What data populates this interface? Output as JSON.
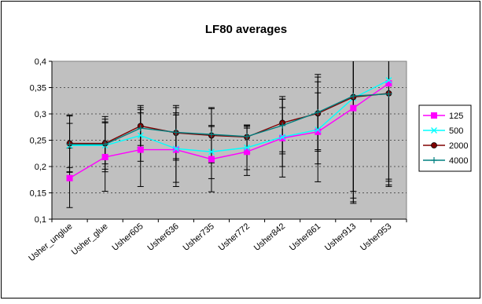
{
  "chart_data": {
    "type": "line",
    "title": "LF80 averages",
    "xlabel": "",
    "ylabel": "",
    "categories": [
      "Usher_unglue",
      "Usher_glue",
      "Usher605",
      "Usher636",
      "Usher735",
      "Usher772",
      "Usher842",
      "Usher861",
      "Usher913",
      "Usher953"
    ],
    "ylim": [
      0.1,
      0.4
    ],
    "yticks": [
      0.1,
      0.15,
      0.2,
      0.25,
      0.3,
      0.35,
      0.4
    ],
    "ytick_labels": [
      "0,1",
      "0,15",
      "0,2",
      "0,25",
      "0,3",
      "0,35",
      "0,4"
    ],
    "grid": true,
    "legend_position": "right",
    "plot_background": "#c0c0c0",
    "series": [
      {
        "name": "125",
        "color": "#ff00ff",
        "marker": "square",
        "values": [
          0.178,
          0.218,
          0.232,
          0.232,
          0.214,
          0.228,
          0.254,
          0.266,
          0.311,
          0.358
        ],
        "err_low": [
          0.122,
          0.153,
          0.162,
          0.162,
          0.152,
          0.183,
          0.18,
          0.171,
          0.13,
          0.162
        ],
        "err_high": [
          0.235,
          0.283,
          0.302,
          0.302,
          0.276,
          0.273,
          0.328,
          0.361,
          0.4,
          0.4
        ]
      },
      {
        "name": "500",
        "color": "#00ffff",
        "marker": "x",
        "values": [
          0.24,
          0.24,
          0.259,
          0.234,
          0.228,
          0.236,
          0.256,
          0.27,
          0.33,
          0.364
        ],
        "err_low": [
          0.198,
          0.205,
          0.21,
          0.17,
          0.177,
          0.194,
          0.2,
          0.205,
          0.14,
          0.165
        ],
        "err_high": [
          0.282,
          0.285,
          0.308,
          0.298,
          0.278,
          0.278,
          0.312,
          0.34,
          0.4,
          0.4
        ]
      },
      {
        "name": "2000",
        "color": "#800000",
        "marker": "circle",
        "values": [
          0.244,
          0.244,
          0.277,
          0.264,
          0.259,
          0.256,
          0.283,
          0.301,
          0.332,
          0.339
        ],
        "err_low": [
          0.19,
          0.195,
          0.24,
          0.212,
          0.207,
          0.225,
          0.228,
          0.232,
          0.133,
          0.176
        ],
        "err_high": [
          0.298,
          0.295,
          0.316,
          0.316,
          0.312,
          0.279,
          0.333,
          0.375,
          0.4,
          0.4
        ]
      },
      {
        "name": "4000",
        "color": "#008080",
        "marker": "plus",
        "values": [
          0.242,
          0.242,
          0.273,
          0.265,
          0.261,
          0.257,
          0.278,
          0.303,
          0.334,
          0.338
        ],
        "err_low": [
          0.189,
          0.19,
          0.236,
          0.215,
          0.21,
          0.226,
          0.224,
          0.229,
          0.153,
          0.172
        ],
        "err_high": [
          0.296,
          0.29,
          0.312,
          0.312,
          0.31,
          0.276,
          0.328,
          0.37,
          0.4,
          0.4
        ]
      }
    ]
  }
}
